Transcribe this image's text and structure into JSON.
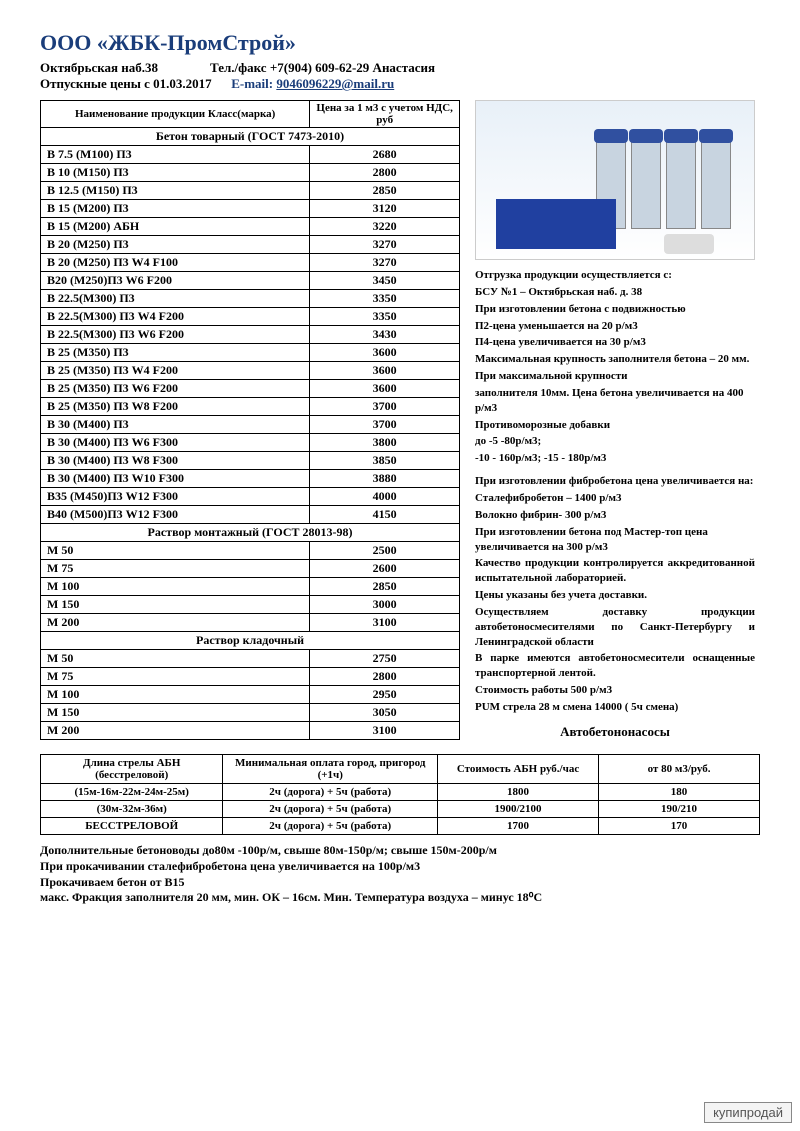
{
  "company": "ООО «ЖБК-ПромСтрой»",
  "address": "Октябрьская наб.38",
  "phone_label": "Тел./факс +7(904) 609-62-29 Анастасия",
  "prices_from": "Отпускные цены с 01.03.2017",
  "email_label": "E-mail:",
  "email": "9046096229@mail.ru",
  "th_name": "Наименование продукции Класс(марка)",
  "th_price": "Цена за 1 м3 с учетом НДС, руб",
  "section1": "Бетон товарный  (ГОСТ 7473-2010)",
  "concrete": [
    {
      "n": "В 7.5   (М100) П3",
      "p": "2680"
    },
    {
      "n": "В 10   (М150) П3",
      "p": "2800"
    },
    {
      "n": "В 12.5 (М150) П3",
      "p": "2850"
    },
    {
      "n": "В 15   (М200) П3",
      "p": "3120"
    },
    {
      "n": "В 15   (М200) АБН",
      "p": "3220"
    },
    {
      "n": "В 20   (М250) П3",
      "p": "3270"
    },
    {
      "n": "В 20   (М250) П3 W4 F100",
      "p": "3270"
    },
    {
      "n": "В20    (М250)П3  W6 F200",
      "p": "3450"
    },
    {
      "n": "В 22.5(М300) П3",
      "p": "3350"
    },
    {
      "n": "В 22.5(М300) П3 W4 F200",
      "p": "3350"
    },
    {
      "n": "В 22.5(М300) П3 W6 F200",
      "p": "3430"
    },
    {
      "n": "В 25   (М350) П3",
      "p": "3600"
    },
    {
      "n": "В 25   (М350) П3 W4 F200",
      "p": "3600"
    },
    {
      "n": "В 25   (М350) П3 W6 F200",
      "p": "3600"
    },
    {
      "n": "В 25   (М350) П3 W8 F200",
      "p": "3700"
    },
    {
      "n": "В 30   (М400) П3",
      "p": "3700"
    },
    {
      "n": "В 30   (М400) П3 W6 F300",
      "p": "3800"
    },
    {
      "n": "В 30   (М400) П3 W8 F300",
      "p": "3850"
    },
    {
      "n": "В 30   (М400) П3 W10 F300",
      "p": "3880"
    },
    {
      "n": "В35    (М450)П3 W12 F300",
      "p": "4000"
    },
    {
      "n": "В40    (М500)П3 W12 F300",
      "p": "4150"
    }
  ],
  "section2": "Раствор монтажный (ГОСТ 28013-98)",
  "mortar1": [
    {
      "n": "М 50",
      "p": "2500"
    },
    {
      "n": "М 75",
      "p": "2600"
    },
    {
      "n": "М 100",
      "p": "2850"
    },
    {
      "n": "М 150",
      "p": "3000"
    },
    {
      "n": "М 200",
      "p": "3100"
    }
  ],
  "section3": "Раствор кладочный",
  "mortar2": [
    {
      "n": "М 50",
      "p": "2750"
    },
    {
      "n": "М 75",
      "p": "2800"
    },
    {
      "n": "М 100",
      "p": "2950"
    },
    {
      "n": "М 150",
      "p": "3050"
    },
    {
      "n": "М 200",
      "p": "3100"
    }
  ],
  "info": {
    "l1": "Отгрузка продукции осуществляется с:",
    "l2": "БСУ №1 – Октябрьская наб. д. 38",
    "l3": "При изготовлении бетона с подвижностью",
    "l4": "П2-цена уменьшается на 20 р/м3",
    "l5": "П4-цена увеличивается на 30 р/м3",
    "l6": "Максимальная крупность заполнителя бетона – 20 мм.",
    "l7": "При максимальной крупности",
    "l8": "заполнителя 10мм. Цена бетона увеличивается на   400  р/м3",
    "l9": "Противоморозные добавки",
    "l10": " до -5  -80р/м3;",
    "l11": "-10  - 160р/м3;  -15  - 180р/м3",
    "l12": "При изготовлении фибробетона цена увеличивается на:",
    "l13": "Сталефибробетон – 1400 р/м3",
    "l14": "Волокно фибрин- 300 р/м3",
    "l15": "При изготовлении бетона под Мастер-топ цена увеличивается на 300 р/м3",
    "l16": "Качество продукции контролируется аккредитованной испытательной лабораторией.",
    "l17": "Цены указаны без учета доставки.",
    "l18": "Осуществляем доставку продукции автобетоносмесителями по Санкт-Петербургу и Ленинградской области",
    "l19": "В парке имеются автобетоносмесители оснащенные транспортерной лентой.",
    "l20": "Стоимость   работы 500 р/м3",
    "l21": "PUM  стрела 28 м смена 14000 ( 5ч смена)"
  },
  "pumps_title": "Автобетононасосы",
  "abn": {
    "h1": "Длина стрелы АБН (бесстреловой)",
    "h2": "Минимальная оплата  город, пригород (+1ч)",
    "h3": "Стоимость АБН руб./час",
    "h4": "от 80 м3/руб.",
    "rows": [
      {
        "c1": "(15м-16м-22м-24м-25м)",
        "c2": "2ч (дорога) + 5ч (работа)",
        "c3": "1800",
        "c4": "180"
      },
      {
        "c1": "(30м-32м-36м)",
        "c2": "2ч (дорога) + 5ч (работа)",
        "c3": "1900/2100",
        "c4": "190/210"
      },
      {
        "c1": "БЕССТРЕЛОВОЙ",
        "c2": "2ч (дорога) + 5ч (работа)",
        "c3": "1700",
        "c4": "170"
      }
    ]
  },
  "foot": {
    "f1": "Дополнительные бетоноводы до80м -100р/м, свыше 80м-150р/м; свыше 150м-200р/м",
    "f2": "При прокачивании  сталефибробетона цена увеличивается на 100р/м3",
    "f3": "Прокачиваем бетон от В15",
    "f4": "макс. Фракция заполнителя 20 мм, мин. ОК – 16см. Мин. Температура воздуха – минус 18⁰С"
  },
  "watermark": "купипродай"
}
